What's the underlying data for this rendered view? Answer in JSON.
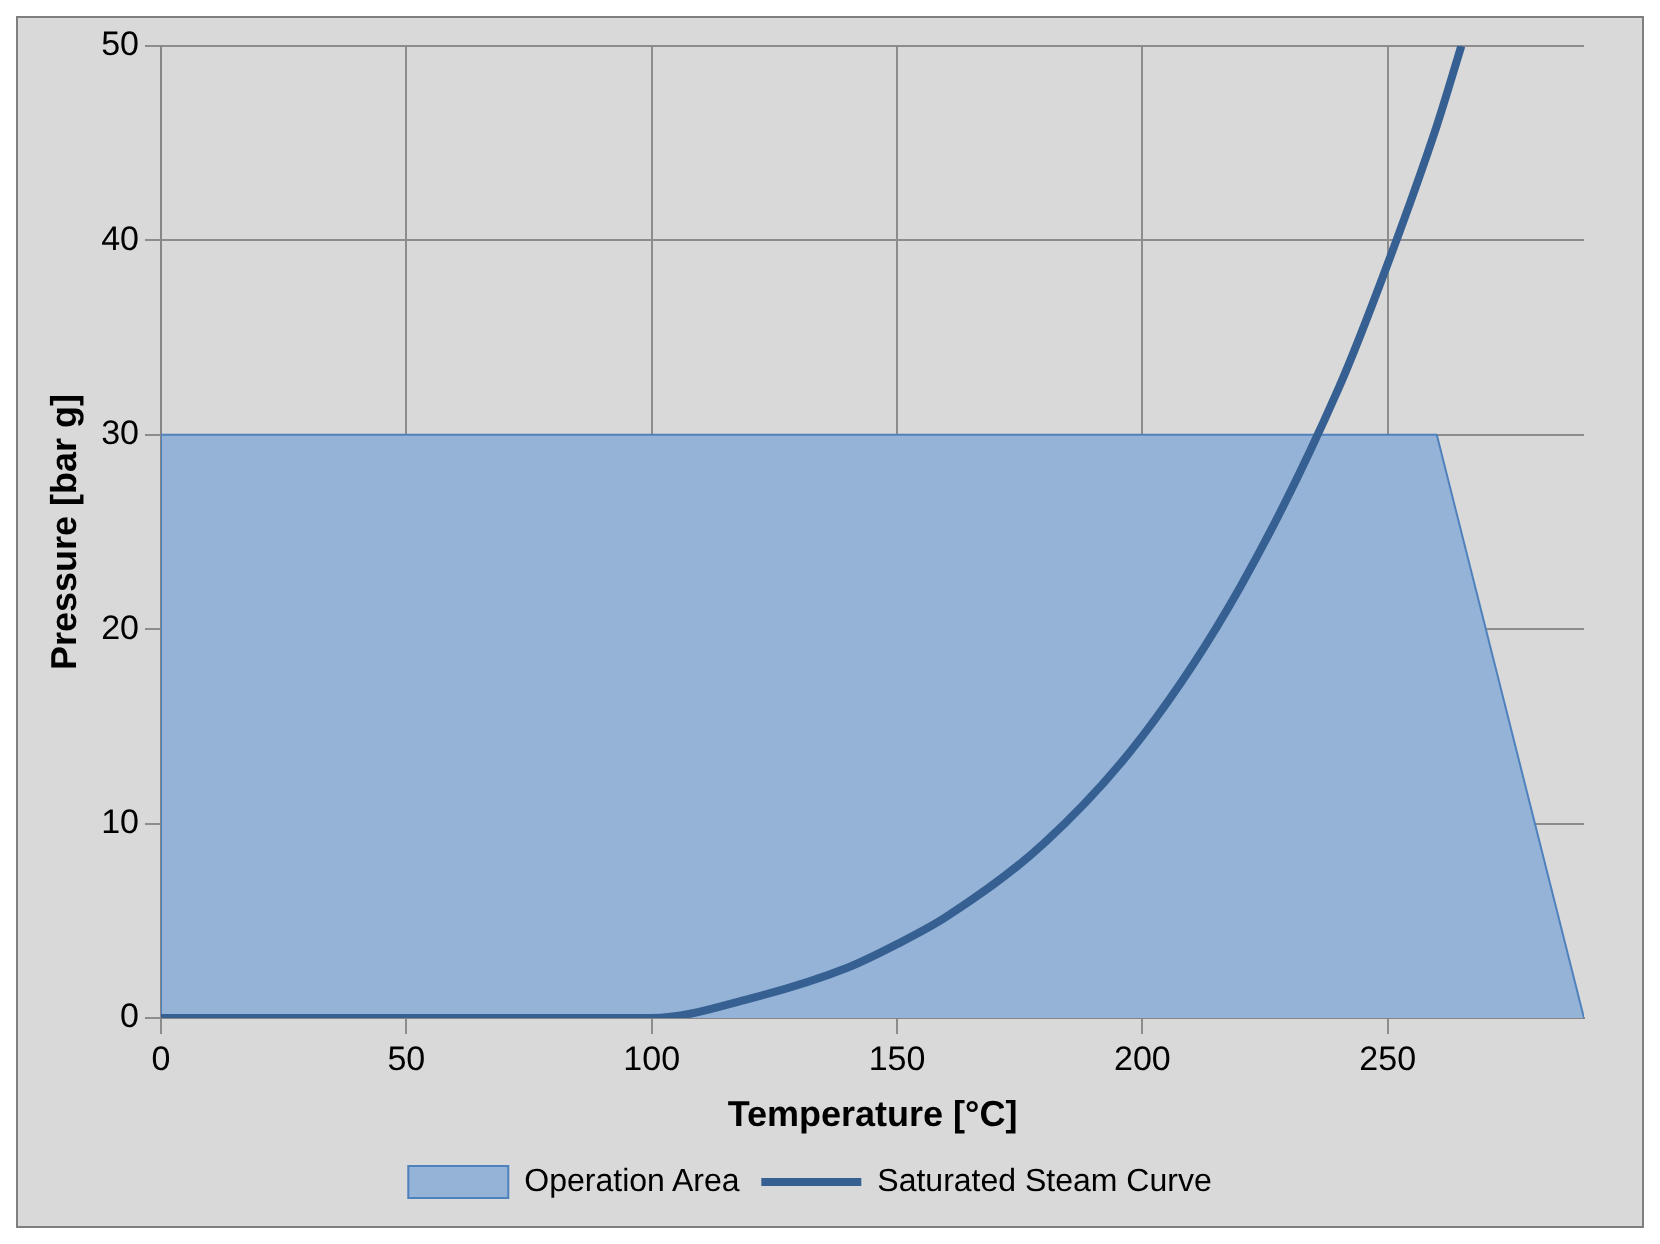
{
  "chart_data": {
    "type": "line",
    "xlabel": "Temperature [°C]",
    "ylabel": "Pressure [bar g]",
    "xlim": [
      0,
      290
    ],
    "xticks": [
      0,
      50,
      100,
      150,
      200,
      250
    ],
    "ylim": [
      0,
      50
    ],
    "yticks": [
      0,
      10,
      20,
      30,
      40,
      50
    ],
    "grid": true,
    "legend": "bottom",
    "marker": "none",
    "series": [
      {
        "name": "Operation Area",
        "type": "area",
        "color": "#95b3d7",
        "x": [
          0,
          0,
          260,
          290
        ],
        "values": [
          0,
          30,
          30,
          0
        ]
      },
      {
        "name": "Saturated Steam Curve",
        "type": "line",
        "color": "#376092",
        "x": [
          0,
          100,
          120,
          140,
          150,
          160,
          180,
          200,
          220,
          240,
          250,
          260,
          265
        ],
        "values": [
          0,
          0,
          1,
          2.6,
          3.8,
          5.2,
          9,
          14.5,
          22.2,
          32.4,
          38.8,
          45.9,
          50
        ]
      }
    ]
  }
}
